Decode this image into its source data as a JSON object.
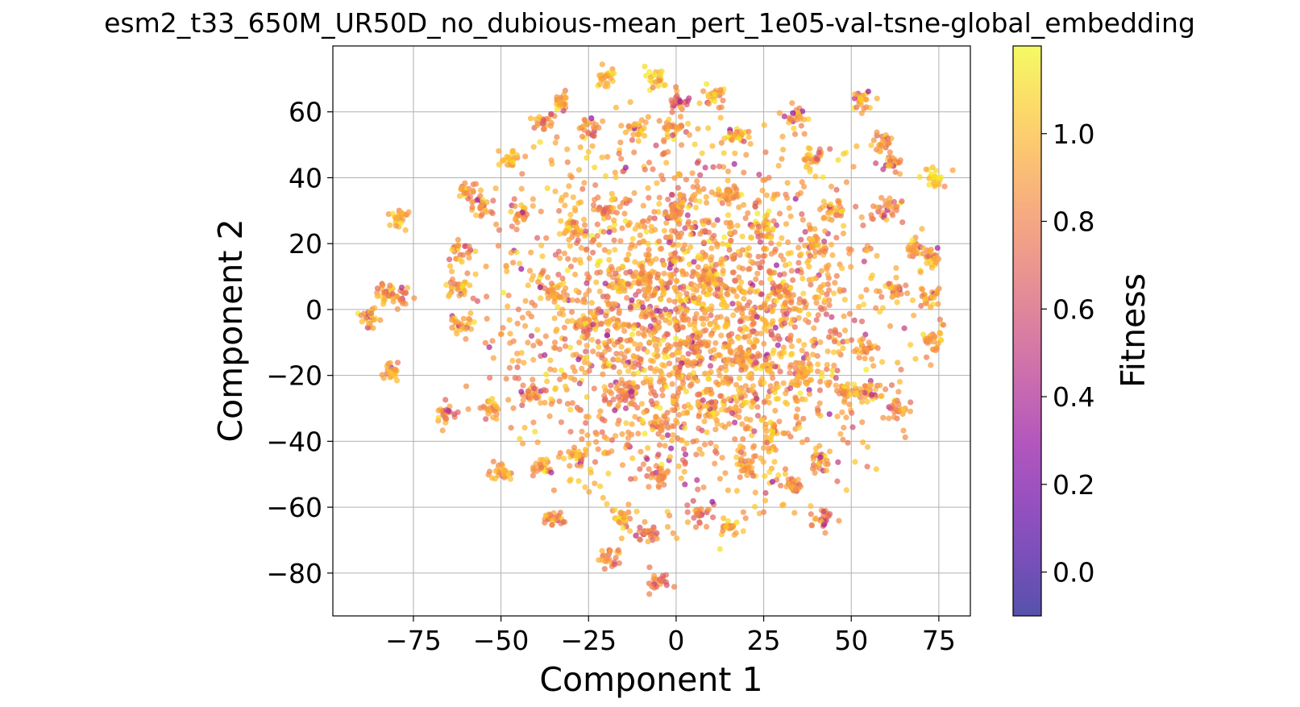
{
  "chart_data": {
    "type": "scatter",
    "title": "esm2_t33_650M_UR50D_no_dubious-mean_pert_1e05-val-tsne-global_embedding",
    "xlabel": "Component 1",
    "ylabel": "Component 2",
    "xlim": [
      -98,
      84
    ],
    "ylim": [
      -93,
      80
    ],
    "x_ticks": [
      -75,
      -50,
      -25,
      0,
      25,
      50,
      75
    ],
    "x_tick_labels": [
      "−75",
      "−50",
      "−25",
      "0",
      "25",
      "50",
      "75"
    ],
    "y_ticks": [
      -80,
      -60,
      -40,
      -20,
      0,
      20,
      40,
      60
    ],
    "y_tick_labels": [
      "−80",
      "−60",
      "−40",
      "−20",
      "0",
      "20",
      "40",
      "60"
    ],
    "grid": true,
    "colormap": "plasma",
    "colorbar": {
      "label": "Fitness",
      "range": [
        -0.1,
        1.2
      ],
      "ticks": [
        0.0,
        0.2,
        0.4,
        0.6,
        0.8,
        1.0
      ],
      "tick_labels": [
        "0.0",
        "0.2",
        "0.4",
        "0.6",
        "0.8",
        "1.0"
      ]
    },
    "point_count_approx": 4000,
    "clusters": [
      [
        -5,
        -83,
        0.75
      ],
      [
        -19,
        -75,
        0.85
      ],
      [
        -15,
        -63,
        0.9
      ],
      [
        -35,
        -64,
        0.85
      ],
      [
        15,
        -66,
        0.95
      ],
      [
        42,
        -64,
        0.8
      ],
      [
        7,
        -62,
        0.8
      ],
      [
        -8,
        -68,
        0.75
      ],
      [
        -6,
        70,
        1.0
      ],
      [
        -20,
        70,
        0.95
      ],
      [
        11,
        65,
        0.9
      ],
      [
        -33,
        63,
        0.9
      ],
      [
        53,
        64,
        0.95
      ],
      [
        1,
        63,
        0.7
      ],
      [
        -38,
        57,
        0.85
      ],
      [
        34,
        58,
        0.9
      ],
      [
        -25,
        54,
        0.9
      ],
      [
        -11,
        54,
        0.95
      ],
      [
        -1,
        55,
        0.9
      ],
      [
        17,
        53,
        1.0
      ],
      [
        59,
        51,
        0.9
      ],
      [
        -47,
        46,
        0.95
      ],
      [
        39,
        46,
        0.9
      ],
      [
        62,
        44,
        0.9
      ],
      [
        74,
        40,
        1.05
      ],
      [
        -79,
        28,
        1.0
      ],
      [
        -59,
        36,
        0.9
      ],
      [
        -55,
        31,
        0.85
      ],
      [
        -44,
        29,
        0.9
      ],
      [
        61,
        31,
        0.9
      ],
      [
        -61,
        18,
        0.9
      ],
      [
        68,
        18,
        0.9
      ],
      [
        73,
        16,
        0.95
      ],
      [
        -84,
        5,
        0.9
      ],
      [
        -79,
        4,
        0.85
      ],
      [
        -88,
        -2,
        0.95
      ],
      [
        -81,
        -19,
        0.9
      ],
      [
        -62,
        7,
        0.9
      ],
      [
        -61,
        -5,
        0.9
      ],
      [
        54,
        -12,
        0.85
      ],
      [
        62,
        6,
        0.9
      ],
      [
        72,
        4,
        0.9
      ],
      [
        -66,
        -32,
        0.9
      ],
      [
        -53,
        -30,
        0.9
      ],
      [
        -50,
        -50,
        0.95
      ],
      [
        -41,
        -26,
        0.85
      ],
      [
        55,
        -25,
        0.9
      ],
      [
        63,
        -30,
        0.85
      ],
      [
        -28,
        -45,
        0.9
      ],
      [
        -38,
        -48,
        0.9
      ],
      [
        42,
        -46,
        0.85
      ],
      [
        33,
        -53,
        0.9
      ],
      [
        -5,
        -50,
        0.85
      ],
      [
        20,
        -48,
        0.9
      ],
      [
        27,
        -38,
        0.9
      ],
      [
        73,
        -10,
        0.9
      ],
      [
        48,
        -25,
        0.9
      ],
      [
        -30,
        25,
        0.95
      ],
      [
        25,
        25,
        0.95
      ],
      [
        40,
        20,
        0.9
      ],
      [
        -20,
        30,
        0.9
      ],
      [
        0,
        30,
        0.85
      ],
      [
        15,
        35,
        0.9
      ],
      [
        -10,
        10,
        0.9
      ],
      [
        10,
        10,
        0.95
      ],
      [
        30,
        5,
        0.9
      ],
      [
        -25,
        -5,
        0.85
      ],
      [
        5,
        -10,
        0.85
      ],
      [
        20,
        -15,
        0.9
      ],
      [
        -15,
        -25,
        0.85
      ],
      [
        35,
        -20,
        0.9
      ],
      [
        -35,
        5,
        0.9
      ],
      [
        45,
        30,
        0.9
      ],
      [
        -5,
        -35,
        0.85
      ],
      [
        10,
        -30,
        0.9
      ]
    ]
  }
}
